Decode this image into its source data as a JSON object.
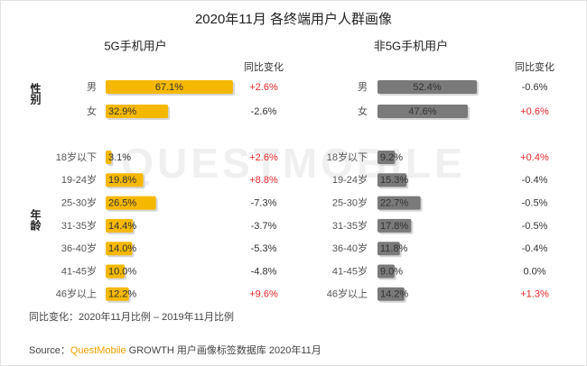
{
  "title": "2020年11月 各终端用户人群画像",
  "watermark": "QUESTMOBILE",
  "groups": [
    "性别",
    "年龄"
  ],
  "note": "同比变化：2020年11月比例 – 2019年11月比例",
  "source": {
    "prefix": "Source：",
    "brand": "QuestMobile",
    "text": " GROWTH 用户画像标签数据库 2020年11月"
  },
  "chart_data": [
    {
      "type": "bar",
      "orientation": "horizontal",
      "title": "5G手机用户",
      "categories": [
        "男",
        "女",
        "18岁以下",
        "19-24岁",
        "25-30岁",
        "31-35岁",
        "36-40岁",
        "41-45岁",
        "46岁以上"
      ],
      "values": [
        67.1,
        32.9,
        3.1,
        19.8,
        26.5,
        14.4,
        14.0,
        10.0,
        12.2
      ],
      "value_labels": [
        "67.1%",
        "32.9%",
        "3.1%",
        "19.8%",
        "26.5%",
        "14.4%",
        "14.0%",
        "10.0%",
        "12.2%"
      ],
      "color": "#f5b800",
      "xlim": [
        0,
        100
      ],
      "change": {
        "header": "同比变化",
        "values": [
          2.6,
          -2.6,
          2.6,
          8.8,
          -7.3,
          -3.7,
          -5.3,
          -4.8,
          9.6
        ],
        "value_labels": [
          "+2.6%",
          "-2.6%",
          "+2.6%",
          "+8.8%",
          "-7.3%",
          "-3.7%",
          "-5.3%",
          "-4.8%",
          "+9.6%"
        ],
        "up_color": "#e8262a",
        "other_color": "#333333"
      }
    },
    {
      "type": "bar",
      "orientation": "horizontal",
      "title": "非5G手机用户",
      "categories": [
        "男",
        "女",
        "18岁以下",
        "19-24岁",
        "25-30岁",
        "31-35岁",
        "36-40岁",
        "41-45岁",
        "46岁以上"
      ],
      "values": [
        52.4,
        47.6,
        9.2,
        15.3,
        22.7,
        17.8,
        11.8,
        9.0,
        14.2
      ],
      "value_labels": [
        "52.4%",
        "47.6%",
        "9.2%",
        "15.3%",
        "22.7%",
        "17.8%",
        "11.8%",
        "9.0%",
        "14.2%"
      ],
      "color": "#7a7a7a",
      "xlim": [
        0,
        100
      ],
      "change": {
        "header": "同比变化",
        "values": [
          -0.6,
          0.6,
          0.4,
          -0.4,
          -0.5,
          -0.5,
          -0.4,
          0.0,
          1.3
        ],
        "value_labels": [
          "-0.6%",
          "+0.6%",
          "+0.4%",
          "-0.4%",
          "-0.5%",
          "-0.5%",
          "-0.4%",
          "0.0%",
          "+1.3%"
        ],
        "up_color": "#e8262a",
        "other_color": "#333333"
      }
    }
  ]
}
